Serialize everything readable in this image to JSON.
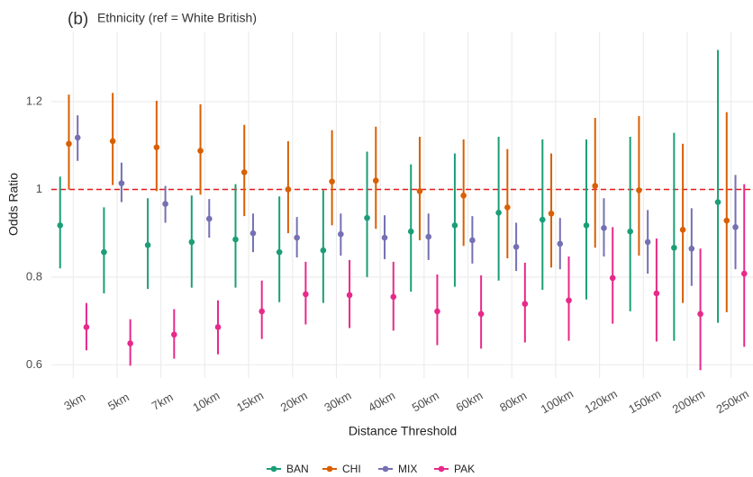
{
  "chart_data": {
    "type": "pointrange",
    "tag": "(b)",
    "title": "Ethnicity (ref = White British)",
    "x_label": "Distance Threshold",
    "y_label": "Odds Ratio",
    "categories": [
      "3km",
      "5km",
      "7km",
      "10km",
      "15km",
      "20km",
      "30km",
      "40km",
      "50km",
      "60km",
      "80km",
      "100km",
      "120km",
      "150km",
      "200km",
      "250km"
    ],
    "ylim": [
      0.57,
      1.36
    ],
    "yticks": [
      0.6,
      0.8,
      1.0,
      1.2
    ],
    "reference_line": 1.0,
    "reference_color": "#e41a1c",
    "grid": true,
    "legend_position": "bottom",
    "series": [
      {
        "name": "BAN",
        "color": "#1b9e77",
        "values": [
          0.918,
          0.857,
          0.873,
          0.88,
          0.886,
          0.857,
          0.861,
          0.935,
          0.904,
          0.918,
          0.947,
          0.931,
          0.918,
          0.904,
          0.867,
          0.971
        ],
        "lower": [
          0.82,
          0.763,
          0.773,
          0.776,
          0.776,
          0.743,
          0.741,
          0.8,
          0.767,
          0.778,
          0.792,
          0.771,
          0.749,
          0.722,
          0.655,
          0.696
        ],
        "upper": [
          1.029,
          0.959,
          0.98,
          0.986,
          1.012,
          0.984,
          0.998,
          1.086,
          1.057,
          1.082,
          1.12,
          1.114,
          1.114,
          1.12,
          1.129,
          1.318
        ]
      },
      {
        "name": "CHI",
        "color": "#d95f02",
        "values": [
          1.104,
          1.11,
          1.096,
          1.088,
          1.039,
          1.0,
          1.018,
          1.02,
          0.996,
          0.986,
          0.959,
          0.945,
          1.008,
          0.998,
          0.908,
          0.929
        ],
        "lower": [
          1.0,
          1.01,
          0.996,
          0.988,
          0.939,
          0.9,
          0.918,
          0.91,
          0.884,
          0.871,
          0.843,
          0.822,
          0.867,
          0.849,
          0.741,
          0.72
        ],
        "upper": [
          1.216,
          1.22,
          1.202,
          1.194,
          1.147,
          1.11,
          1.135,
          1.143,
          1.12,
          1.114,
          1.092,
          1.082,
          1.163,
          1.167,
          1.104,
          1.176
        ]
      },
      {
        "name": "MIX",
        "color": "#7570b3",
        "values": [
          1.118,
          1.014,
          0.967,
          0.933,
          0.9,
          0.89,
          0.898,
          0.89,
          0.892,
          0.884,
          0.869,
          0.876,
          0.912,
          0.88,
          0.865,
          0.914
        ],
        "lower": [
          1.065,
          0.971,
          0.924,
          0.89,
          0.857,
          0.845,
          0.849,
          0.841,
          0.839,
          0.831,
          0.814,
          0.818,
          0.847,
          0.808,
          0.78,
          0.818
        ],
        "upper": [
          1.169,
          1.061,
          1.008,
          0.978,
          0.945,
          0.937,
          0.945,
          0.941,
          0.945,
          0.939,
          0.924,
          0.935,
          0.98,
          0.953,
          0.957,
          1.033
        ]
      },
      {
        "name": "PAK",
        "color": "#e7298a",
        "values": [
          0.686,
          0.649,
          0.669,
          0.686,
          0.722,
          0.761,
          0.759,
          0.755,
          0.722,
          0.716,
          0.739,
          0.747,
          0.798,
          0.763,
          0.716,
          0.808
        ],
        "lower": [
          0.633,
          0.598,
          0.614,
          0.624,
          0.659,
          0.692,
          0.684,
          0.678,
          0.645,
          0.637,
          0.651,
          0.655,
          0.694,
          0.653,
          0.588,
          0.641
        ],
        "upper": [
          0.741,
          0.704,
          0.727,
          0.747,
          0.792,
          0.835,
          0.839,
          0.835,
          0.806,
          0.804,
          0.833,
          0.847,
          0.914,
          0.888,
          0.865,
          1.012
        ]
      }
    ]
  }
}
